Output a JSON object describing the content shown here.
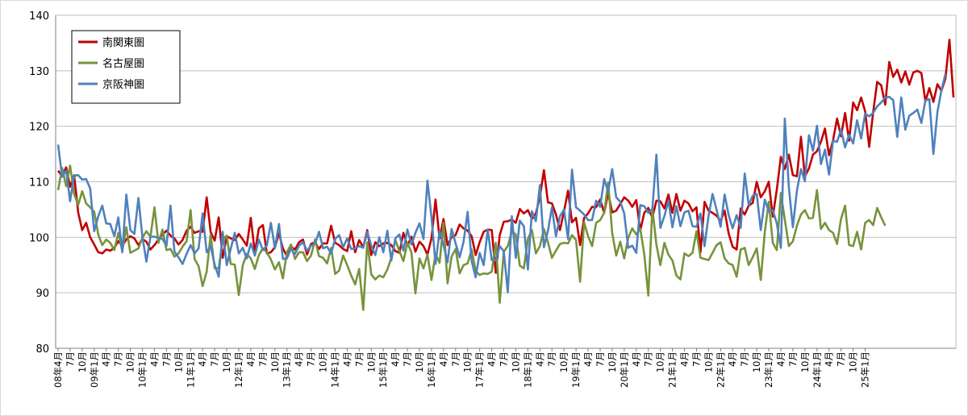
{
  "chart_data": {
    "type": "line",
    "ylim": [
      80,
      140
    ],
    "yticks": [
      80,
      90,
      100,
      110,
      120,
      130,
      140
    ],
    "grid": true,
    "legend_position": "top-left",
    "x_start": "2008-04",
    "x_end": "2025-01",
    "x_tick_labels": [
      "08年4月",
      "7月",
      "10月",
      "09年1月",
      "4月",
      "7月",
      "10月",
      "10年1月",
      "4月",
      "7月",
      "10月",
      "11年1月",
      "4月",
      "7月",
      "10月",
      "12年1月",
      "4月",
      "7月",
      "10月",
      "13年1月",
      "4月",
      "7月",
      "10月",
      "14年1月",
      "4月",
      "7月",
      "10月",
      "15年1月",
      "4月",
      "7月",
      "10月",
      "16年1月",
      "4月",
      "7月",
      "10月",
      "17年1月",
      "4月",
      "7月",
      "10月",
      "18年1月",
      "4月",
      "7月",
      "10月",
      "19年1月",
      "4月",
      "7月",
      "10月",
      "20年1月",
      "4月",
      "7月",
      "10月",
      "21年1月",
      "4月",
      "7月",
      "10月",
      "22年1月",
      "4月",
      "7月",
      "10月",
      "23年1月",
      "4月",
      "7月",
      "10月",
      "24年1月",
      "4月",
      "7月",
      "10月",
      "25年1月"
    ],
    "series": [
      {
        "name": "南関東圏",
        "color": "#c00000",
        "values": [
          112.0,
          111.0,
          112.6,
          109.1,
          111.2,
          104.5,
          101.3,
          102.6,
          100.0,
          98.7,
          97.3,
          97.1,
          97.8,
          97.6,
          98.1,
          99.3,
          98.5,
          99.6,
          100.2,
          99.8,
          98.6,
          99.7,
          99.2,
          97.8,
          98.6,
          99.6,
          100.5,
          101.2,
          100.3,
          99.8,
          98.7,
          99.5,
          101.2,
          101.9,
          100.8,
          101.1,
          101.0,
          107.2,
          101.0,
          99.4,
          103.6,
          96.3,
          100.2,
          99.8,
          99.5,
          100.6,
          99.6,
          98.5,
          103.5,
          97.2,
          101.6,
          102.2,
          97.1,
          97.3,
          98.2,
          100.7,
          98.0,
          96.6,
          98.3,
          97.8,
          99.1,
          99.6,
          96.9,
          98.8,
          99.1,
          97.9,
          98.9,
          98.9,
          102.1,
          99.0,
          98.6,
          97.9,
          97.5,
          101.1,
          97.3,
          99.5,
          98.2,
          101.3,
          96.8,
          99.1,
          98.4,
          98.9,
          99.0,
          98.6,
          97.5,
          97.2,
          100.8,
          98.5,
          100.1,
          97.4,
          99.2,
          98.4,
          96.9,
          99.8,
          106.8,
          99.8,
          103.3,
          98.6,
          100.0,
          100.4,
          102.3,
          101.6,
          101.2,
          100.2,
          96.8,
          99.1,
          101.0,
          101.4,
          101.3,
          93.6,
          100.4,
          102.8,
          102.9,
          103.2,
          102.6,
          105.1,
          104.3,
          104.9,
          103.3,
          104.3,
          107.3,
          112.1,
          106.3,
          106.1,
          104.1,
          101.3,
          104.7,
          108.4,
          102.7,
          103.5,
          98.6,
          103.5,
          104.3,
          105.5,
          105.4,
          106.8,
          104.4,
          108.0,
          104.5,
          104.8,
          106.0,
          107.2,
          106.6,
          105.5,
          106.7,
          101.2,
          104.4,
          105.3,
          103.5,
          106.6,
          106.5,
          105.2,
          107.7,
          104.4,
          107.8,
          104.8,
          106.6,
          106.1,
          104.7,
          105.4,
          97.3,
          106.4,
          104.8,
          104.4,
          103.9,
          102.9,
          104.8,
          100.7,
          98.3,
          97.8,
          105.2,
          104.1,
          105.7,
          106.2,
          110.0,
          107.2,
          108.3,
          110.0,
          103.7,
          108.6,
          114.5,
          112.3,
          114.9,
          111.2,
          111.0,
          118.1,
          111.0,
          112.4,
          114.9,
          115.5,
          117.2,
          119.6,
          114.8,
          117.5,
          121.4,
          118.2,
          122.4,
          117.4,
          124.3,
          122.9,
          125.2,
          122.7,
          116.3,
          122.5,
          128.0,
          127.4,
          123.9,
          131.6,
          128.9,
          130.2,
          127.9,
          129.9,
          127.5,
          129.7,
          130.0,
          129.6,
          124.5,
          126.9,
          124.4,
          127.6,
          126.4,
          128.6,
          135.6,
          125.2
        ]
      },
      {
        "name": "名古屋圏",
        "color": "#77933c",
        "values": [
          108.5,
          112.5,
          109.2,
          112.9,
          107.8,
          105.8,
          108.3,
          106.1,
          105.4,
          104.6,
          100.5,
          98.6,
          99.6,
          99.0,
          97.7,
          100.8,
          97.5,
          101.8,
          97.2,
          97.6,
          98.0,
          99.9,
          101.1,
          100.1,
          105.4,
          99.0,
          101.4,
          97.7,
          97.9,
          96.5,
          97.1,
          98.3,
          99.3,
          104.9,
          96.1,
          94.8,
          91.2,
          93.8,
          100.5,
          94.4,
          94.4,
          99.6,
          100.3,
          95.2,
          95.1,
          89.6,
          95.0,
          97.0,
          96.2,
          94.3,
          96.8,
          98.0,
          97.3,
          96.0,
          94.2,
          95.5,
          92.6,
          97.3,
          98.7,
          96.1,
          97.3,
          97.3,
          95.7,
          96.7,
          99.6,
          96.6,
          96.3,
          95.3,
          98.1,
          93.4,
          94.0,
          96.7,
          95.0,
          93.1,
          91.5,
          94.3,
          86.9,
          99.1,
          93.3,
          92.4,
          93.1,
          92.8,
          94.2,
          96.3,
          99.5,
          97.5,
          95.7,
          99.0,
          97.3,
          89.9,
          96.2,
          94.4,
          96.9,
          92.3,
          97.0,
          95.4,
          102.6,
          91.7,
          96.5,
          97.9,
          93.5,
          95.0,
          95.3,
          97.8,
          93.9,
          93.2,
          93.5,
          93.4,
          93.8,
          99.0,
          88.2,
          97.4,
          98.4,
          101.1,
          100.5,
          94.9,
          94.4,
          99.7,
          101.3,
          97.1,
          98.4,
          101.5,
          99.1,
          96.3,
          97.6,
          98.8,
          99.0,
          98.9,
          100.4,
          99.5,
          92.0,
          102.7,
          100.2,
          98.4,
          102.6,
          103.1,
          104.4,
          109.9,
          100.8,
          96.7,
          99.2,
          96.2,
          99.9,
          101.6,
          100.5,
          101.6,
          96.9,
          89.5,
          105.3,
          98.7,
          95.0,
          99.0,
          96.9,
          95.8,
          93.1,
          92.4,
          97.1,
          96.6,
          97.2,
          101.1,
          96.3,
          96.1,
          95.9,
          97.2,
          98.6,
          99.1,
          96.2,
          95.3,
          95.0,
          92.9,
          97.8,
          98.1,
          95.0,
          96.4,
          98.0,
          92.3,
          101.0,
          106.4,
          99.0,
          97.7,
          108.0,
          103.2,
          98.4,
          99.3,
          102.1,
          104.1,
          104.9,
          103.4,
          103.5,
          108.5,
          101.5,
          102.6,
          101.3,
          100.8,
          98.8,
          103.3,
          105.7,
          98.6,
          98.4,
          101.0,
          97.8,
          102.6,
          103.1,
          102.2,
          105.3,
          103.6,
          102.1
        ]
      },
      {
        "name": "京阪神圏",
        "color": "#4f81bd",
        "values": [
          116.7,
          110.9,
          112.0,
          106.5,
          111.1,
          111.2,
          110.4,
          110.5,
          108.8,
          101.1,
          103.8,
          105.7,
          102.5,
          102.4,
          100.2,
          103.6,
          97.3,
          107.7,
          101.3,
          100.6,
          107.1,
          100.1,
          95.6,
          100.1,
          100.1,
          99.9,
          99.7,
          98.5,
          105.7,
          97.4,
          96.4,
          95.2,
          97.0,
          98.6,
          97.1,
          98.0,
          104.3,
          97.3,
          98.4,
          95.1,
          92.9,
          101.0,
          95.0,
          97.9,
          100.8,
          97.1,
          98.1,
          96.2,
          98.9,
          96.7,
          99.6,
          97.7,
          98.5,
          102.6,
          98.0,
          102.4,
          96.1,
          96.2,
          97.9,
          97.0,
          98.5,
          99.1,
          97.6,
          98.5,
          98.8,
          101.0,
          98.0,
          98.3,
          97.1,
          99.7,
          100.4,
          98.2,
          99.8,
          97.9,
          98.0,
          98.4,
          98.1,
          101.0,
          98.5,
          96.8,
          100.0,
          97.3,
          101.2,
          95.8,
          99.8,
          100.5,
          97.6,
          101.4,
          98.7,
          100.8,
          102.5,
          99.7,
          110.2,
          103.6,
          95.2,
          101.1,
          98.6,
          95.5,
          101.5,
          98.9,
          96.4,
          99.2,
          104.6,
          95.7,
          92.8,
          97.2,
          95.0,
          101.4,
          95.9,
          95.9,
          98.4,
          97.5,
          90.1,
          103.8,
          96.3,
          103.0,
          102.0,
          94.2,
          104.7,
          102.9,
          109.4,
          98.2,
          101.2,
          105.4,
          100.2,
          103.8,
          105.0,
          99.7,
          112.2,
          105.4,
          104.8,
          104.1,
          103.1,
          103.1,
          106.6,
          105.5,
          110.5,
          108.2,
          112.3,
          107.2,
          106.4,
          104.3,
          98.1,
          98.5,
          97.2,
          105.8,
          105.6,
          104.4,
          105.1,
          114.9,
          101.7,
          103.8,
          106.6,
          101.8,
          105.6,
          102.0,
          104.5,
          104.8,
          102.0,
          101.9,
          104.3,
          98.4,
          103.9,
          107.8,
          105.0,
          101.9,
          107.7,
          104.0,
          101.6,
          104.0,
          101.7,
          111.5,
          105.8,
          107.5,
          107.8,
          101.3,
          106.8,
          104.7,
          104.9,
          102.5,
          98.1,
          121.4,
          109.0,
          101.8,
          108.4,
          112.3,
          110.1,
          118.4,
          115.6,
          120.1,
          113.2,
          115.8,
          111.3,
          117.4,
          117.2,
          119.4,
          116.2,
          118.5,
          116.9,
          121.1,
          117.8,
          122.3,
          121.8,
          122.4,
          123.6,
          124.3,
          125.2,
          125.3,
          124.7,
          118.1,
          125.2,
          119.4,
          121.9,
          122.4,
          123.0,
          120.6,
          124.7,
          124.9,
          115.0,
          122.6,
          126.5,
          129.4
        ]
      }
    ]
  }
}
